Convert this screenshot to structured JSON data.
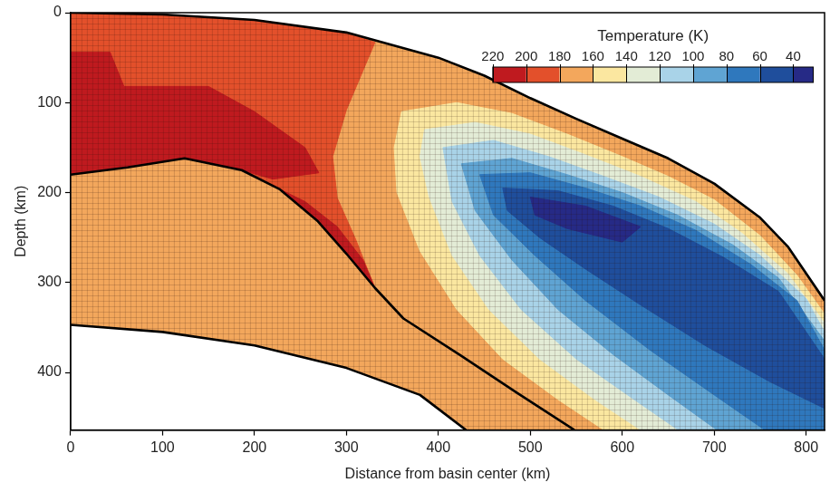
{
  "chart_data": {
    "type": "contour",
    "xlabel": "Distance from basin center (km)",
    "ylabel": "Depth (km)",
    "xlim": [
      0,
      820
    ],
    "ylim": [
      464,
      0
    ],
    "xticks": [
      0,
      100,
      200,
      300,
      400,
      500,
      600,
      700,
      800
    ],
    "yticks": [
      0,
      100,
      200,
      300,
      400
    ],
    "grid": false,
    "colorbar": {
      "label": "Temperature (K)",
      "range": [
        220,
        28
      ],
      "ticks": [
        220,
        200,
        180,
        160,
        140,
        120,
        100,
        80,
        60,
        40
      ],
      "colors": [
        "#bf1a1f",
        "#e3502b",
        "#f3a75c",
        "#fbe7a0",
        "#e3ecd6",
        "#a9d3e8",
        "#5fa4d3",
        "#2f78bd",
        "#1f4e9c",
        "#262a86"
      ]
    },
    "regions": [
      {
        "value": 170,
        "points": [
          [
            0,
            0
          ],
          [
            100,
            2
          ],
          [
            200,
            8
          ],
          [
            300,
            22
          ],
          [
            400,
            50
          ],
          [
            450,
            70
          ],
          [
            500,
            95
          ],
          [
            550,
            118
          ],
          [
            600,
            140
          ],
          [
            650,
            162
          ],
          [
            700,
            190
          ],
          [
            750,
            228
          ],
          [
            780,
            260
          ],
          [
            820,
            320
          ],
          [
            820,
            464
          ],
          [
            430,
            464
          ],
          [
            380,
            425
          ],
          [
            300,
            395
          ],
          [
            200,
            370
          ],
          [
            100,
            355
          ],
          [
            0,
            347
          ],
          [
            0,
            0
          ]
        ]
      },
      {
        "value": 190,
        "points": [
          [
            0,
            0
          ],
          [
            100,
            2
          ],
          [
            200,
            8
          ],
          [
            300,
            22
          ],
          [
            331,
            33
          ],
          [
            300,
            108
          ],
          [
            285,
            160
          ],
          [
            290,
            206
          ],
          [
            310,
            252
          ],
          [
            331,
            306
          ],
          [
            300,
            268
          ],
          [
            269,
            232
          ],
          [
            227,
            196
          ],
          [
            186,
            175
          ],
          [
            124,
            162
          ],
          [
            62,
            172
          ],
          [
            0,
            180
          ],
          [
            0,
            0
          ]
        ]
      },
      {
        "value": 210,
        "points": [
          [
            0,
            44
          ],
          [
            43,
            44
          ],
          [
            58,
            82
          ],
          [
            150,
            82
          ],
          [
            200,
            110
          ],
          [
            255,
            150
          ],
          [
            270,
            178
          ],
          [
            220,
            185
          ],
          [
            186,
            175
          ],
          [
            124,
            162
          ],
          [
            62,
            172
          ],
          [
            0,
            180
          ],
          [
            0,
            44
          ]
        ]
      },
      {
        "value": 210,
        "points": [
          [
            227,
            196
          ],
          [
            269,
            232
          ],
          [
            300,
            268
          ],
          [
            331,
            306
          ],
          [
            318,
            275
          ],
          [
            290,
            238
          ],
          [
            255,
            210
          ],
          [
            227,
            196
          ]
        ]
      },
      {
        "value": 150,
        "points": [
          [
            360,
            110
          ],
          [
            420,
            100
          ],
          [
            480,
            112
          ],
          [
            540,
            135
          ],
          [
            600,
            160
          ],
          [
            650,
            182
          ],
          [
            700,
            208
          ],
          [
            750,
            248
          ],
          [
            790,
            292
          ],
          [
            820,
            335
          ],
          [
            820,
            464
          ],
          [
            580,
            464
          ],
          [
            530,
            430
          ],
          [
            470,
            385
          ],
          [
            420,
            330
          ],
          [
            380,
            265
          ],
          [
            355,
            200
          ],
          [
            352,
            150
          ],
          [
            360,
            110
          ]
        ]
      },
      {
        "value": 130,
        "points": [
          [
            385,
            130
          ],
          [
            440,
            122
          ],
          [
            500,
            135
          ],
          [
            560,
            158
          ],
          [
            620,
            182
          ],
          [
            680,
            210
          ],
          [
            730,
            245
          ],
          [
            780,
            290
          ],
          [
            820,
            345
          ],
          [
            820,
            464
          ],
          [
            620,
            464
          ],
          [
            570,
            430
          ],
          [
            510,
            385
          ],
          [
            455,
            330
          ],
          [
            415,
            270
          ],
          [
            390,
            205
          ],
          [
            380,
            160
          ],
          [
            385,
            130
          ]
        ]
      },
      {
        "value": 110,
        "points": [
          [
            405,
            150
          ],
          [
            460,
            142
          ],
          [
            520,
            160
          ],
          [
            580,
            182
          ],
          [
            640,
            205
          ],
          [
            700,
            235
          ],
          [
            750,
            270
          ],
          [
            800,
            318
          ],
          [
            820,
            355
          ],
          [
            820,
            464
          ],
          [
            661,
            464
          ],
          [
            610,
            428
          ],
          [
            550,
            385
          ],
          [
            490,
            330
          ],
          [
            445,
            270
          ],
          [
            415,
            210
          ],
          [
            405,
            150
          ]
        ]
      },
      {
        "value": 90,
        "points": [
          [
            425,
            168
          ],
          [
            480,
            162
          ],
          [
            540,
            180
          ],
          [
            600,
            200
          ],
          [
            660,
            225
          ],
          [
            720,
            258
          ],
          [
            770,
            295
          ],
          [
            820,
            365
          ],
          [
            820,
            464
          ],
          [
            703,
            464
          ],
          [
            650,
            425
          ],
          [
            590,
            380
          ],
          [
            530,
            330
          ],
          [
            480,
            275
          ],
          [
            440,
            220
          ],
          [
            425,
            168
          ]
        ]
      },
      {
        "value": 70,
        "points": [
          [
            445,
            180
          ],
          [
            500,
            178
          ],
          [
            560,
            195
          ],
          [
            620,
            215
          ],
          [
            680,
            242
          ],
          [
            740,
            280
          ],
          [
            790,
            320
          ],
          [
            820,
            375
          ],
          [
            820,
            464
          ],
          [
            755,
            464
          ],
          [
            700,
            425
          ],
          [
            630,
            375
          ],
          [
            560,
            320
          ],
          [
            505,
            270
          ],
          [
            460,
            225
          ],
          [
            445,
            180
          ]
        ]
      },
      {
        "value": 50,
        "points": [
          [
            470,
            195
          ],
          [
            530,
            198
          ],
          [
            590,
            215
          ],
          [
            650,
            240
          ],
          [
            710,
            272
          ],
          [
            770,
            310
          ],
          [
            820,
            385
          ],
          [
            820,
            440
          ],
          [
            760,
            410
          ],
          [
            690,
            370
          ],
          [
            620,
            325
          ],
          [
            560,
            285
          ],
          [
            510,
            250
          ],
          [
            475,
            220
          ],
          [
            470,
            195
          ]
        ]
      },
      {
        "value": 35,
        "points": [
          [
            500,
            205
          ],
          [
            560,
            215
          ],
          [
            620,
            238
          ],
          [
            600,
            255
          ],
          [
            540,
            240
          ],
          [
            505,
            225
          ],
          [
            500,
            205
          ]
        ]
      }
    ],
    "boundaries": [
      [
        [
          0,
          0
        ],
        [
          100,
          2
        ],
        [
          200,
          8
        ],
        [
          300,
          22
        ],
        [
          400,
          50
        ],
        [
          450,
          70
        ],
        [
          500,
          95
        ],
        [
          550,
          118
        ],
        [
          600,
          140
        ],
        [
          650,
          162
        ],
        [
          700,
          190
        ],
        [
          750,
          228
        ],
        [
          780,
          260
        ],
        [
          820,
          320
        ]
      ],
      [
        [
          0,
          347
        ],
        [
          100,
          355
        ],
        [
          200,
          370
        ],
        [
          300,
          395
        ],
        [
          380,
          425
        ],
        [
          430,
          464
        ]
      ],
      [
        [
          0,
          180
        ],
        [
          62,
          172
        ],
        [
          124,
          162
        ],
        [
          186,
          175
        ],
        [
          227,
          196
        ],
        [
          269,
          232
        ],
        [
          300,
          268
        ],
        [
          331,
          306
        ],
        [
          362,
          340
        ],
        [
          424,
          381
        ],
        [
          486,
          423
        ],
        [
          548,
          464
        ]
      ]
    ]
  }
}
